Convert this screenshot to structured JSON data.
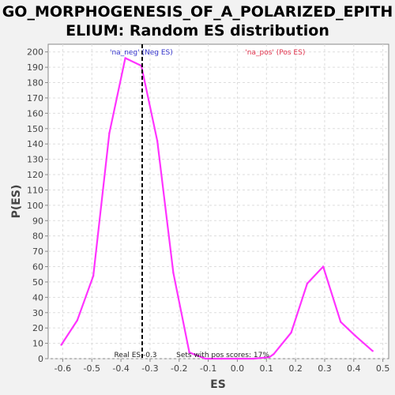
{
  "chart_data": {
    "type": "line",
    "title_line1": "GO_MORPHOGENESIS_OF_A_POLARIZED_EPITH",
    "title_line2": "ELIUM: Random ES distribution",
    "xlabel": "ES",
    "ylabel": "P(ES)",
    "xlim": [
      -0.65,
      0.52
    ],
    "ylim": [
      0,
      205
    ],
    "x_ticks": [
      -0.6,
      -0.5,
      -0.4,
      -0.3,
      -0.2,
      -0.1,
      0.0,
      0.1,
      0.2,
      0.3,
      0.4,
      0.5
    ],
    "x_tick_labels": [
      "-0.6",
      "-0.5",
      "-0.4",
      "-0.3",
      "-0.2",
      "-0.1",
      "0.0",
      "0.1",
      "0.2",
      "0.3",
      "0.4",
      "0.5"
    ],
    "y_ticks": [
      0,
      10,
      20,
      30,
      40,
      50,
      60,
      70,
      80,
      90,
      100,
      110,
      120,
      130,
      140,
      150,
      160,
      170,
      180,
      190,
      200
    ],
    "grid": true,
    "series": [
      {
        "color": "#ff33ff",
        "x": [
          -0.605,
          -0.55,
          -0.495,
          -0.44,
          -0.385,
          -0.33,
          -0.275,
          -0.22,
          -0.165,
          -0.11,
          -0.055,
          0.0,
          0.055,
          0.11,
          0.125,
          0.185,
          0.24,
          0.295,
          0.355,
          0.405,
          0.465
        ],
        "y": [
          9,
          25,
          54,
          147,
          196,
          191,
          142,
          56,
          4,
          0,
          0,
          0,
          0,
          1,
          3,
          17,
          49,
          60,
          24,
          15,
          5
        ]
      }
    ],
    "real_es": -0.327,
    "real_es_color": "#000000",
    "annotations": {
      "neg_label": "'na_neg' (Neg ES)",
      "neg_color": "#3333cc",
      "pos_label": "'na_pos' (Pos ES)",
      "pos_color": "#e0304a",
      "real_es_text": "Real ES -0.3",
      "sets_text": "Sets with pos scores: 17%"
    }
  }
}
